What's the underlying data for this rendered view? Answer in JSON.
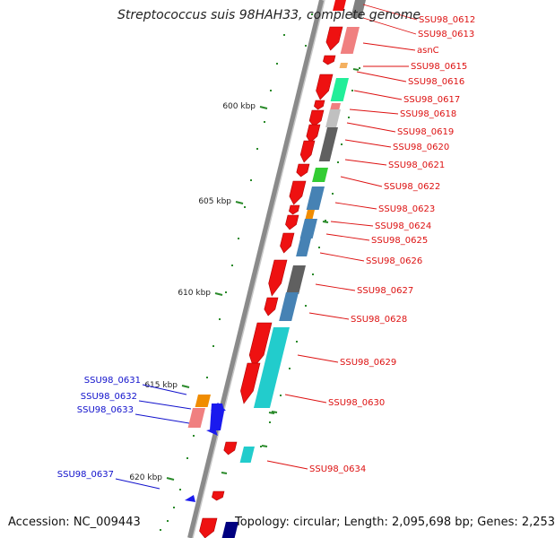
{
  "title": "Streptococcus suis 98HAH33, complete genome",
  "accession_text": "Accession: NC_009443",
  "topology_text": "Topology: circular; Length: 2,095,698 bp; Genes: 2,253",
  "colors": {
    "forward_gene_label": "#dd1111",
    "reverse_gene_label": "#1111cc",
    "backbone": "#888888",
    "tick": "#2a8a2a"
  },
  "scale_ticks": [
    {
      "label": "600 kbp",
      "kbp": 600
    },
    {
      "label": "605 kbp",
      "kbp": 605
    },
    {
      "label": "610 kbp",
      "kbp": 610
    },
    {
      "label": "615 kbp",
      "kbp": 615
    },
    {
      "label": "620 kbp",
      "kbp": 620
    }
  ],
  "genes_forward": [
    {
      "name": "SSU98_0612"
    },
    {
      "name": "SSU98_0613"
    },
    {
      "name": "asnC"
    },
    {
      "name": "SSU98_0615"
    },
    {
      "name": "SSU98_0616"
    },
    {
      "name": "SSU98_0617"
    },
    {
      "name": "SSU98_0618"
    },
    {
      "name": "SSU98_0619"
    },
    {
      "name": "SSU98_0620"
    },
    {
      "name": "SSU98_0621"
    },
    {
      "name": "SSU98_0622"
    },
    {
      "name": "SSU98_0623"
    },
    {
      "name": "SSU98_0624"
    },
    {
      "name": "SSU98_0625"
    },
    {
      "name": "SSU98_0626"
    },
    {
      "name": "SSU98_0627"
    },
    {
      "name": "SSU98_0628"
    },
    {
      "name": "SSU98_0629"
    },
    {
      "name": "SSU98_0630"
    },
    {
      "name": "SSU98_0634"
    }
  ],
  "genes_reverse": [
    {
      "name": "SSU98_0631"
    },
    {
      "name": "SSU98_0632"
    },
    {
      "name": "SSU98_0633"
    },
    {
      "name": "SSU98_0637"
    }
  ]
}
